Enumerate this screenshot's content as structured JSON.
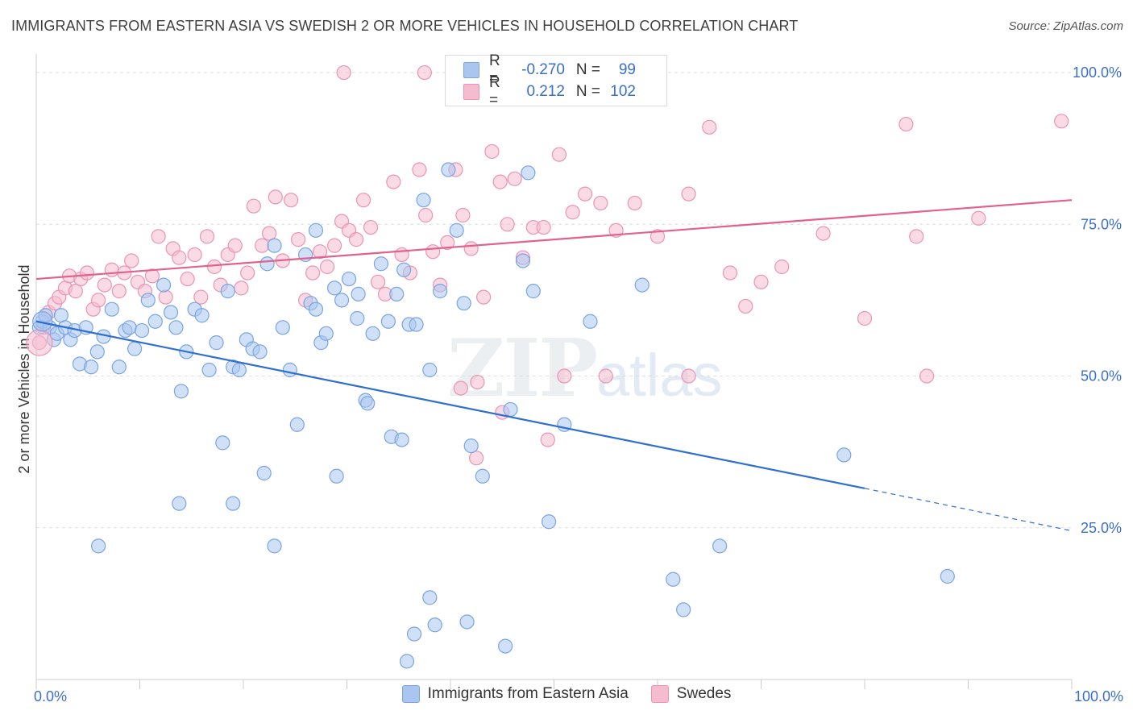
{
  "title": "IMMIGRANTS FROM EASTERN ASIA VS SWEDISH 2 OR MORE VEHICLES IN HOUSEHOLD CORRELATION CHART",
  "source": "Source: ZipAtlas.com",
  "watermark": {
    "zip": "ZIP",
    "atlas": "atlas"
  },
  "legend_stats": {
    "series1": {
      "r_label": "R =",
      "r_value": "-0.270",
      "n_label": "N =",
      "n_value": "99"
    },
    "series2": {
      "r_label": "R =",
      "r_value": "0.212",
      "n_label": "N =",
      "n_value": "102"
    }
  },
  "colors": {
    "blue_fill": "#a9c6f0",
    "blue_stroke": "#7aa5e2",
    "blue_line": "#2e6fcf",
    "pink_fill": "#f5bcd0",
    "pink_stroke": "#eb94b3",
    "pink_line": "#e0628d",
    "axis_text": "#3b6fc7",
    "grid": "#dddddd"
  },
  "chart_data": {
    "type": "scatter",
    "title": "IMMIGRANTS FROM EASTERN ASIA VS SWEDISH 2 OR MORE VEHICLES IN HOUSEHOLD CORRELATION CHART",
    "xlabel": "",
    "ylabel": "2 or more Vehicles in Household",
    "xlim": [
      0,
      100
    ],
    "ylim": [
      0,
      102
    ],
    "x_tick_labels": [
      "0.0%",
      "100.0%"
    ],
    "y_ticks": [
      25,
      50,
      75,
      100
    ],
    "y_tick_labels": [
      "25.0%",
      "50.0%",
      "75.0%",
      "100.0%"
    ],
    "grid": true,
    "legend_position": "bottom",
    "series": [
      {
        "name": "Immigrants from Eastern Asia",
        "color": "#a9c6f0",
        "trend": {
          "x0": 0,
          "y0": 59,
          "x1": 80,
          "y1": 31.5,
          "dash_to": 100,
          "dash_y": 24.5
        },
        "points": [
          [
            0.3,
            58
          ],
          [
            0.6,
            59
          ],
          [
            0.9,
            60
          ],
          [
            1.3,
            58
          ],
          [
            1.7,
            56
          ],
          [
            2.0,
            57
          ],
          [
            2.4,
            60
          ],
          [
            2.8,
            58
          ],
          [
            3.3,
            56
          ],
          [
            3.7,
            57.5
          ],
          [
            4.2,
            52
          ],
          [
            4.8,
            58
          ],
          [
            5.3,
            51.5
          ],
          [
            5.9,
            54
          ],
          [
            6.5,
            56.5
          ],
          [
            7.3,
            61
          ],
          [
            8.0,
            51.5
          ],
          [
            8.6,
            57.5
          ],
          [
            9.0,
            58
          ],
          [
            9.5,
            54.5
          ],
          [
            10.2,
            57.5
          ],
          [
            10.8,
            62.5
          ],
          [
            11.5,
            59
          ],
          [
            12.3,
            65
          ],
          [
            13.0,
            60.5
          ],
          [
            13.5,
            58
          ],
          [
            14.0,
            47.5
          ],
          [
            14.5,
            54
          ],
          [
            15.3,
            61
          ],
          [
            16.0,
            60
          ],
          [
            16.7,
            51
          ],
          [
            17.4,
            55.5
          ],
          [
            18.0,
            39
          ],
          [
            18.5,
            64
          ],
          [
            19.0,
            51.5
          ],
          [
            19.6,
            51
          ],
          [
            20.3,
            56
          ],
          [
            20.9,
            54.5
          ],
          [
            21.6,
            54
          ],
          [
            22.3,
            68.5
          ],
          [
            23.0,
            71.5
          ],
          [
            23.8,
            58
          ],
          [
            24.5,
            51
          ],
          [
            25.2,
            42
          ],
          [
            26.0,
            70
          ],
          [
            26.5,
            62
          ],
          [
            27.0,
            74
          ],
          [
            27.5,
            55.5
          ],
          [
            28.0,
            57
          ],
          [
            28.8,
            64.5
          ],
          [
            29.5,
            62.5
          ],
          [
            30.2,
            66
          ],
          [
            31.0,
            59.5
          ],
          [
            31.8,
            46
          ],
          [
            32.5,
            57
          ],
          [
            33.3,
            68.5
          ],
          [
            34.0,
            59
          ],
          [
            34.8,
            63.5
          ],
          [
            35.5,
            67.5
          ],
          [
            36.0,
            58.5
          ],
          [
            36.7,
            58.5
          ],
          [
            37.4,
            79
          ],
          [
            38.0,
            51
          ],
          [
            39.0,
            64
          ],
          [
            39.8,
            84
          ],
          [
            40.6,
            74
          ],
          [
            41.3,
            62
          ],
          [
            42.0,
            38.5
          ],
          [
            43.1,
            33.5
          ],
          [
            45.8,
            44.5
          ],
          [
            47.5,
            83.5
          ],
          [
            47.0,
            69
          ],
          [
            48.0,
            64
          ],
          [
            49.5,
            26
          ],
          [
            51.0,
            42
          ],
          [
            53.5,
            59
          ],
          [
            58.5,
            65
          ],
          [
            61.5,
            16.5
          ],
          [
            62.5,
            11.5
          ],
          [
            66.0,
            22
          ],
          [
            78.0,
            37
          ],
          [
            88.0,
            17
          ],
          [
            6.0,
            22
          ],
          [
            13.8,
            29
          ],
          [
            19.0,
            29
          ],
          [
            22.0,
            34
          ],
          [
            23.0,
            22
          ],
          [
            29.0,
            33.5
          ],
          [
            32.0,
            45.5
          ],
          [
            34.3,
            40
          ],
          [
            35.3,
            39.5
          ],
          [
            38.0,
            13.5
          ],
          [
            38.5,
            9
          ],
          [
            36.5,
            7.5
          ],
          [
            35.8,
            3
          ],
          [
            45.3,
            5.5
          ],
          [
            41.6,
            9.5
          ],
          [
            31.1,
            63.5
          ],
          [
            27.0,
            61
          ]
        ]
      },
      {
        "name": "Swedes",
        "color": "#f5bcd0",
        "trend": {
          "x0": 0,
          "y0": 66,
          "x1": 100,
          "y1": 79
        },
        "points": [
          [
            0.3,
            55.5
          ],
          [
            0.7,
            58
          ],
          [
            1.2,
            60.5
          ],
          [
            1.8,
            62
          ],
          [
            2.2,
            63
          ],
          [
            2.8,
            64.5
          ],
          [
            3.2,
            66.5
          ],
          [
            3.8,
            64
          ],
          [
            4.3,
            66
          ],
          [
            4.9,
            67
          ],
          [
            5.5,
            61
          ],
          [
            6.0,
            62.5
          ],
          [
            6.6,
            65
          ],
          [
            7.3,
            67.5
          ],
          [
            8.0,
            64
          ],
          [
            8.5,
            67
          ],
          [
            9.2,
            69
          ],
          [
            9.8,
            65.5
          ],
          [
            10.5,
            64
          ],
          [
            11.2,
            66.5
          ],
          [
            11.8,
            73
          ],
          [
            12.5,
            63
          ],
          [
            13.2,
            71
          ],
          [
            13.8,
            69.5
          ],
          [
            14.6,
            66
          ],
          [
            15.3,
            70
          ],
          [
            15.9,
            63
          ],
          [
            16.5,
            73
          ],
          [
            17.2,
            68
          ],
          [
            17.8,
            65
          ],
          [
            18.5,
            70
          ],
          [
            19.2,
            71.5
          ],
          [
            19.8,
            64.5
          ],
          [
            20.4,
            67
          ],
          [
            21.0,
            78
          ],
          [
            21.8,
            71.5
          ],
          [
            22.5,
            73.5
          ],
          [
            23.1,
            79.5
          ],
          [
            23.8,
            69
          ],
          [
            24.6,
            79
          ],
          [
            25.3,
            72.5
          ],
          [
            26.0,
            62.5
          ],
          [
            26.7,
            67
          ],
          [
            27.4,
            70.5
          ],
          [
            28.1,
            68
          ],
          [
            28.8,
            71.5
          ],
          [
            29.5,
            75.5
          ],
          [
            30.2,
            74
          ],
          [
            30.9,
            72.5
          ],
          [
            31.6,
            79
          ],
          [
            32.3,
            74.5
          ],
          [
            33.0,
            65.5
          ],
          [
            33.7,
            63.5
          ],
          [
            34.5,
            82
          ],
          [
            35.3,
            70
          ],
          [
            36.1,
            67
          ],
          [
            37.0,
            84
          ],
          [
            37.6,
            76.5
          ],
          [
            38.3,
            70.5
          ],
          [
            39.0,
            65
          ],
          [
            39.7,
            72
          ],
          [
            40.5,
            84
          ],
          [
            41.2,
            76.5
          ],
          [
            42.0,
            71
          ],
          [
            42.6,
            49
          ],
          [
            43.2,
            63
          ],
          [
            44.0,
            87
          ],
          [
            44.8,
            82
          ],
          [
            45.5,
            75
          ],
          [
            46.2,
            82.5
          ],
          [
            47.0,
            69.5
          ],
          [
            48.0,
            74.5
          ],
          [
            49.0,
            74.5
          ],
          [
            50.5,
            86.5
          ],
          [
            51.8,
            77
          ],
          [
            53.0,
            80
          ],
          [
            54.5,
            78.5
          ],
          [
            56.0,
            74
          ],
          [
            57.8,
            78.5
          ],
          [
            60.0,
            73
          ],
          [
            63.0,
            80
          ],
          [
            65.0,
            91
          ],
          [
            67.0,
            67
          ],
          [
            68.5,
            61.5
          ],
          [
            70.0,
            65.5
          ],
          [
            72.0,
            68
          ],
          [
            76.0,
            73.5
          ],
          [
            80.0,
            59.5
          ],
          [
            84.0,
            91.5
          ],
          [
            85.0,
            73
          ],
          [
            86.0,
            50
          ],
          [
            91.0,
            76
          ],
          [
            99.0,
            92
          ],
          [
            42.5,
            36.5
          ],
          [
            45.0,
            44
          ],
          [
            49.4,
            39.5
          ],
          [
            51.0,
            50
          ],
          [
            55.0,
            50
          ],
          [
            63.0,
            50
          ],
          [
            41.0,
            48
          ],
          [
            29.7,
            100
          ],
          [
            37.5,
            100
          ]
        ]
      }
    ]
  }
}
